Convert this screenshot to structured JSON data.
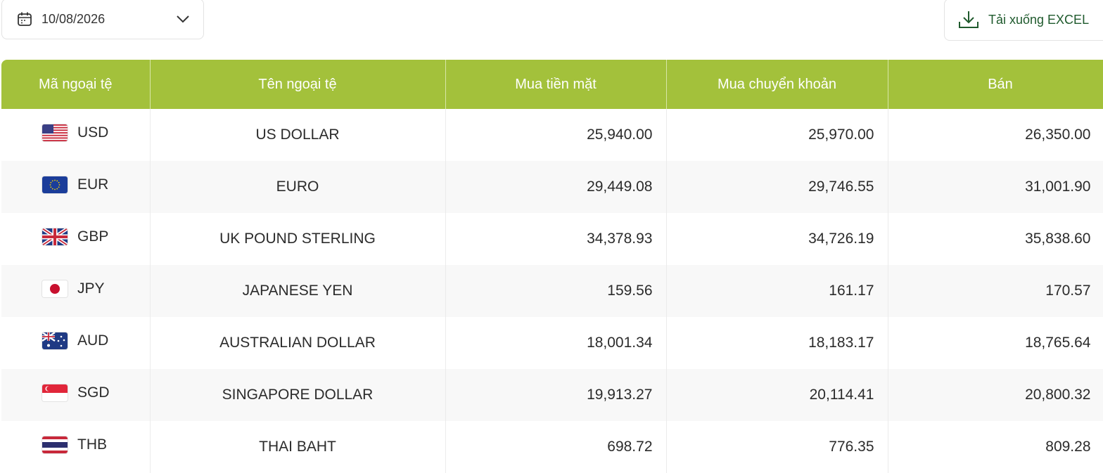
{
  "date_picker": {
    "value": "10/08/2026"
  },
  "download_button": {
    "label": "Tải xuống EXCEL"
  },
  "table": {
    "columns": [
      "Mã ngoại tệ",
      "Tên ngoại tệ",
      "Mua tiền mặt",
      "Mua chuyển khoản",
      "Bán"
    ],
    "rows": [
      [
        "USD",
        "US DOLLAR",
        "25,940.00",
        "25,970.00",
        "26,350.00"
      ],
      [
        "EUR",
        "EURO",
        "29,449.08",
        "29,746.55",
        "31,001.90"
      ],
      [
        "GBP",
        "UK POUND STERLING",
        "34,378.93",
        "34,726.19",
        "35,838.60"
      ],
      [
        "JPY",
        "JAPANESE YEN",
        "159.56",
        "161.17",
        "170.57"
      ],
      [
        "AUD",
        "AUSTRALIAN DOLLAR",
        "18,001.34",
        "18,183.17",
        "18,765.64"
      ],
      [
        "SGD",
        "SINGAPORE DOLLAR",
        "19,913.27",
        "20,114.41",
        "20,800.32"
      ],
      [
        "THB",
        "THAI BAHT",
        "698.72",
        "776.35",
        "809.28"
      ]
    ]
  }
}
